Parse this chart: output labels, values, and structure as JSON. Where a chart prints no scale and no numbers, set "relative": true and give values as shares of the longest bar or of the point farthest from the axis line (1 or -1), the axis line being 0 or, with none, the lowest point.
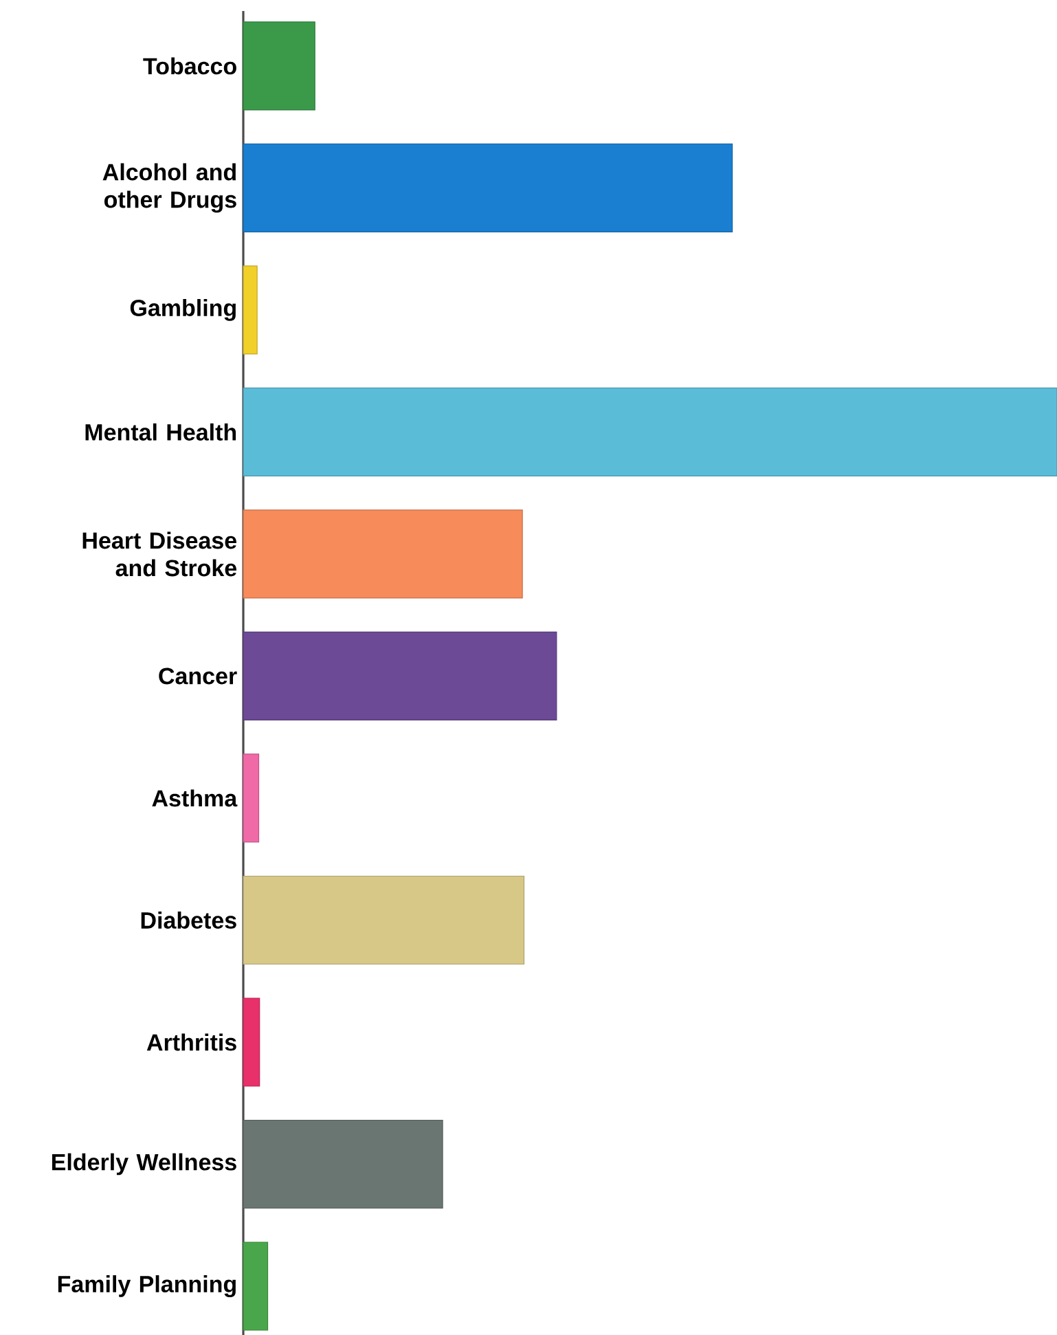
{
  "chart_data": {
    "type": "bar",
    "orientation": "horizontal",
    "relative": true,
    "categories": [
      "Tobacco",
      "Alcohol and other Drugs",
      "Gambling",
      "Mental Health",
      "Heart Disease and Stroke",
      "Cancer",
      "Asthma",
      "Diabetes",
      "Arthritis",
      "Elderly Wellness",
      "Family Planning"
    ],
    "values": [
      0.088,
      0.601,
      0.017,
      1,
      0.343,
      0.385,
      0.019,
      0.345,
      0.02,
      0.245,
      0.03
    ],
    "colors": [
      "#3a9a4a",
      "#1a7fd0",
      "#f2d02a",
      "#5bbcd8",
      "#f78b5a",
      "#6c4a96",
      "#f06aa8",
      "#d8c888",
      "#e8306a",
      "#6a7672",
      "#4aa64a"
    ]
  }
}
